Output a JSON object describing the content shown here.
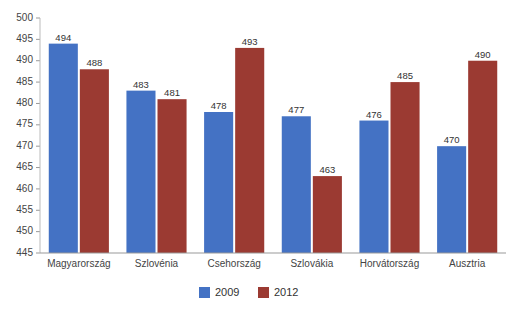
{
  "chart_data": {
    "type": "bar",
    "categories": [
      "Magyarország",
      "Szlovénia",
      "Csehország",
      "Szlovákia",
      "Horvátország",
      "Ausztria"
    ],
    "series": [
      {
        "name": "2009",
        "color": "#4472C4",
        "values": [
          494,
          483,
          478,
          477,
          476,
          470
        ]
      },
      {
        "name": "2012",
        "color": "#9B3A32",
        "values": [
          488,
          481,
          493,
          463,
          485,
          490
        ]
      }
    ],
    "ylim": [
      445,
      500
    ],
    "yticks": [
      445,
      450,
      455,
      460,
      465,
      470,
      475,
      480,
      485,
      490,
      495,
      500
    ],
    "data_labels": true,
    "grid": false,
    "legend": "bottom"
  }
}
